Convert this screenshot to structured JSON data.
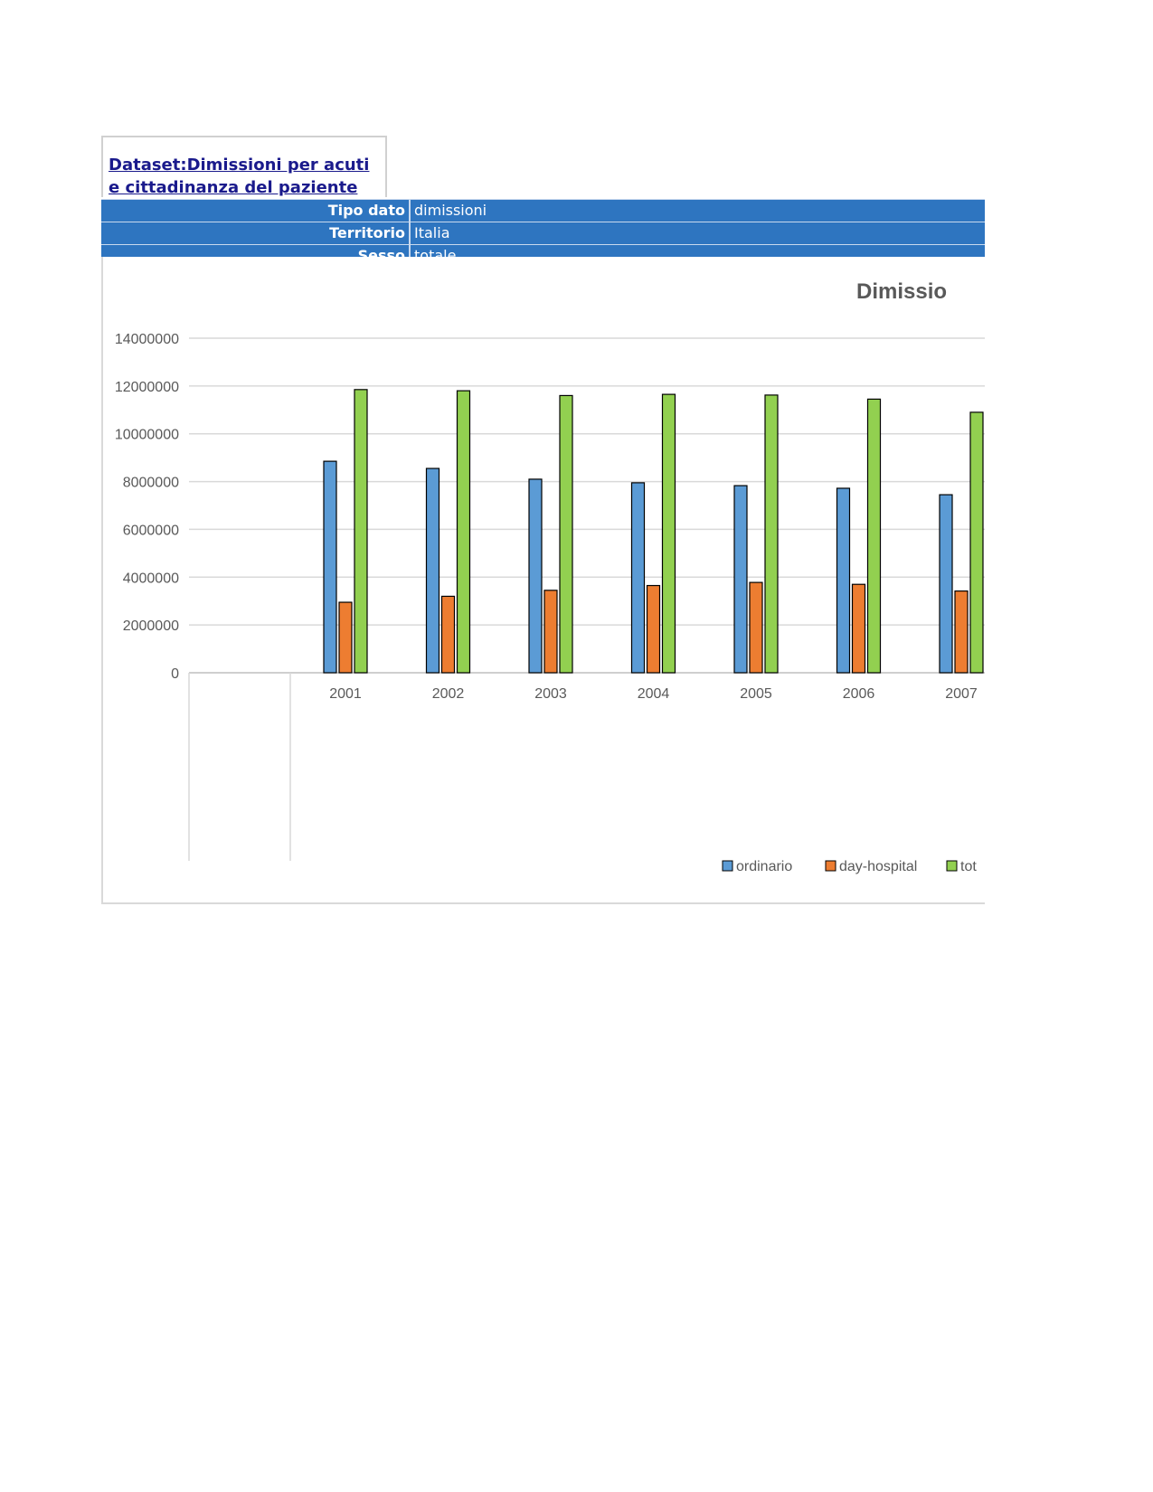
{
  "dataset": {
    "title_line1": "Dataset:Dimissioni per acuti",
    "title_line2": "e cittadinanza del paziente"
  },
  "filters": [
    {
      "key": "Tipo dato",
      "value": "dimissioni"
    },
    {
      "key": "Territorio",
      "value": "Italia"
    },
    {
      "key": "Sesso",
      "value": "totale"
    }
  ],
  "colors": {
    "header_bg": "#2e75c0",
    "ordinario": "#5b9bd5",
    "day_hospital": "#ed7d31",
    "totale": "#92d050"
  },
  "chart_data": {
    "type": "bar",
    "title": "Dimissio",
    "categories": [
      "2001",
      "2002",
      "2003",
      "2004",
      "2005",
      "2006",
      "2007"
    ],
    "series": [
      {
        "name": "ordinario",
        "values": [
          8850000,
          8550000,
          8100000,
          7950000,
          7830000,
          7720000,
          7450000
        ]
      },
      {
        "name": "day-hospital",
        "values": [
          2950000,
          3200000,
          3450000,
          3650000,
          3780000,
          3700000,
          3420000
        ]
      },
      {
        "name": "totale",
        "values": [
          11850000,
          11800000,
          11600000,
          11650000,
          11620000,
          11450000,
          10900000
        ]
      }
    ],
    "legend_labels": [
      "ordinario",
      "day-hospital",
      "tot"
    ],
    "y_ticks": [
      "0",
      "2000000",
      "4000000",
      "6000000",
      "8000000",
      "10000000",
      "12000000",
      "14000000"
    ],
    "ylim": [
      0,
      14000000
    ],
    "grid": true,
    "legend_position": "bottom"
  }
}
